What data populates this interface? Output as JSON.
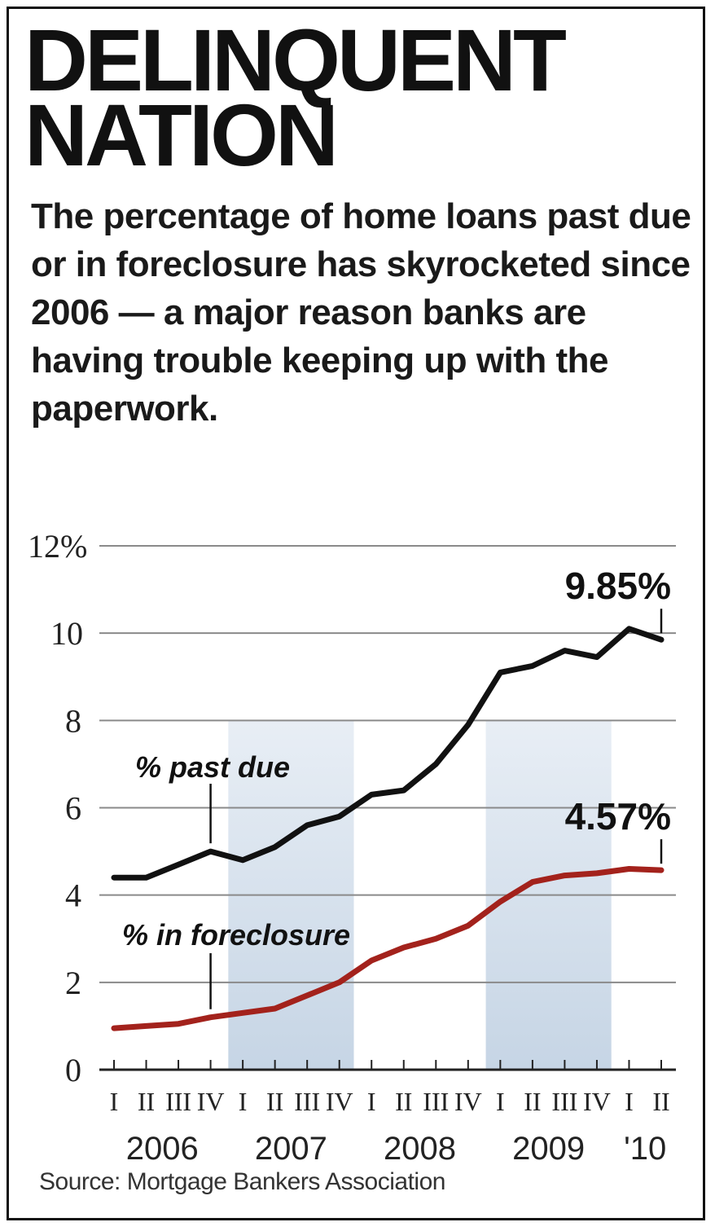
{
  "title": "DELINQUENT NATION",
  "subtitle": "The percentage of home loans past due or in foreclosure has skyrocketed since 2006 — a major reason banks are having trouble keeping up with the paperwork.",
  "source": "Source: Mortgage Bankers Association",
  "chart_data": {
    "type": "line",
    "ylim": [
      0,
      12
    ],
    "y_ticks": [
      0,
      2,
      4,
      6,
      8,
      10,
      12
    ],
    "y_tick_labels": [
      "0",
      "2",
      "4",
      "6",
      "8",
      "10",
      "12%"
    ],
    "grid": true,
    "x_quarter_labels": [
      "I",
      "II",
      "III",
      "IV",
      "I",
      "II",
      "III",
      "IV",
      "I",
      "II",
      "III",
      "IV",
      "I",
      "II",
      "III",
      "IV",
      "I",
      "II"
    ],
    "x_year_labels": [
      "2006",
      "2007",
      "2008",
      "2009",
      "'10"
    ],
    "shaded_years": [
      "2007",
      "2009"
    ],
    "series": [
      {
        "name": "% past due",
        "color": "#111111",
        "values": [
          4.4,
          4.4,
          4.7,
          5.0,
          4.8,
          5.1,
          5.6,
          5.8,
          6.3,
          6.4,
          7.0,
          7.9,
          9.1,
          9.25,
          9.6,
          9.45,
          10.1,
          9.85
        ],
        "end_label": "9.85%"
      },
      {
        "name": "% in foreclosure",
        "color": "#a3221c",
        "values": [
          0.95,
          1.0,
          1.05,
          1.2,
          1.3,
          1.4,
          1.7,
          2.0,
          2.5,
          2.8,
          3.0,
          3.3,
          3.85,
          4.3,
          4.45,
          4.5,
          4.6,
          4.57
        ],
        "end_label": "4.57%"
      }
    ]
  }
}
